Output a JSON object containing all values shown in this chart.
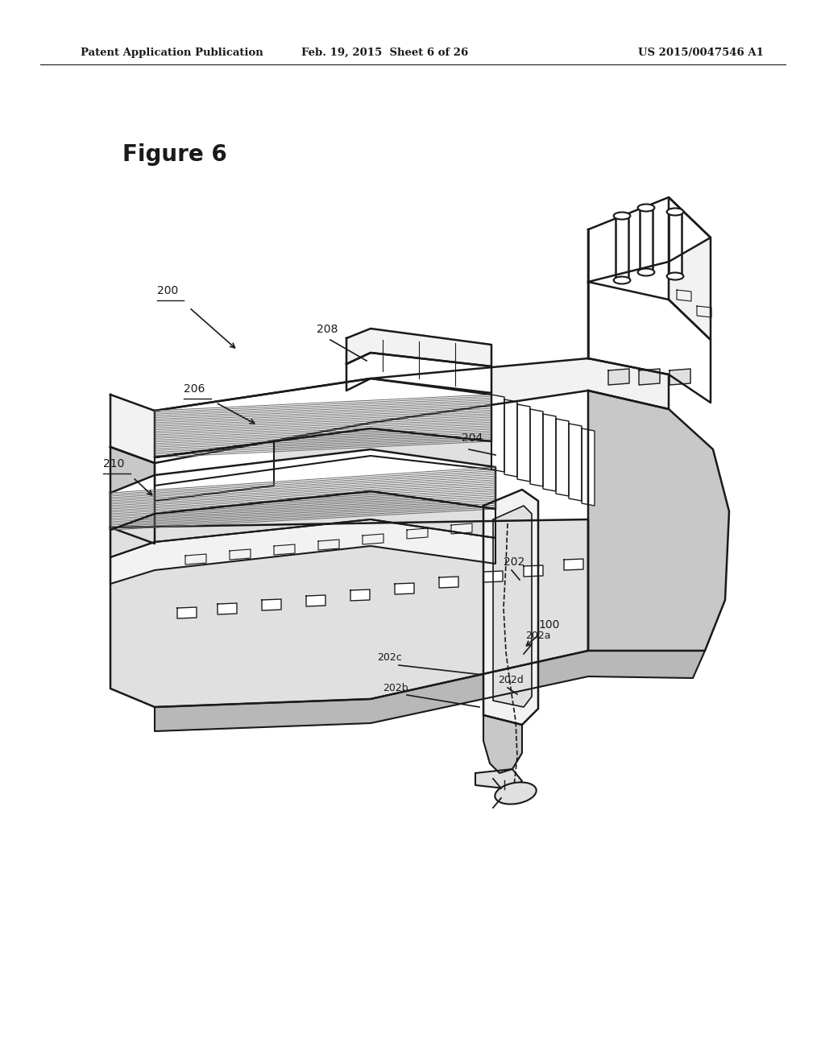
{
  "bg_color": "#ffffff",
  "line_color": "#1a1a1a",
  "header_left": "Patent Application Publication",
  "header_center": "Feb. 19, 2015  Sheet 6 of 26",
  "header_right": "US 2015/0047546 A1",
  "figure_label": "Figure 6",
  "BLACK": "#1a1a1a",
  "LGRAY": "#f2f2f2",
  "MGRAY": "#e0e0e0",
  "DGRAY": "#c8c8c8",
  "WHITE": "#ffffff",
  "HATCH": "#666666"
}
